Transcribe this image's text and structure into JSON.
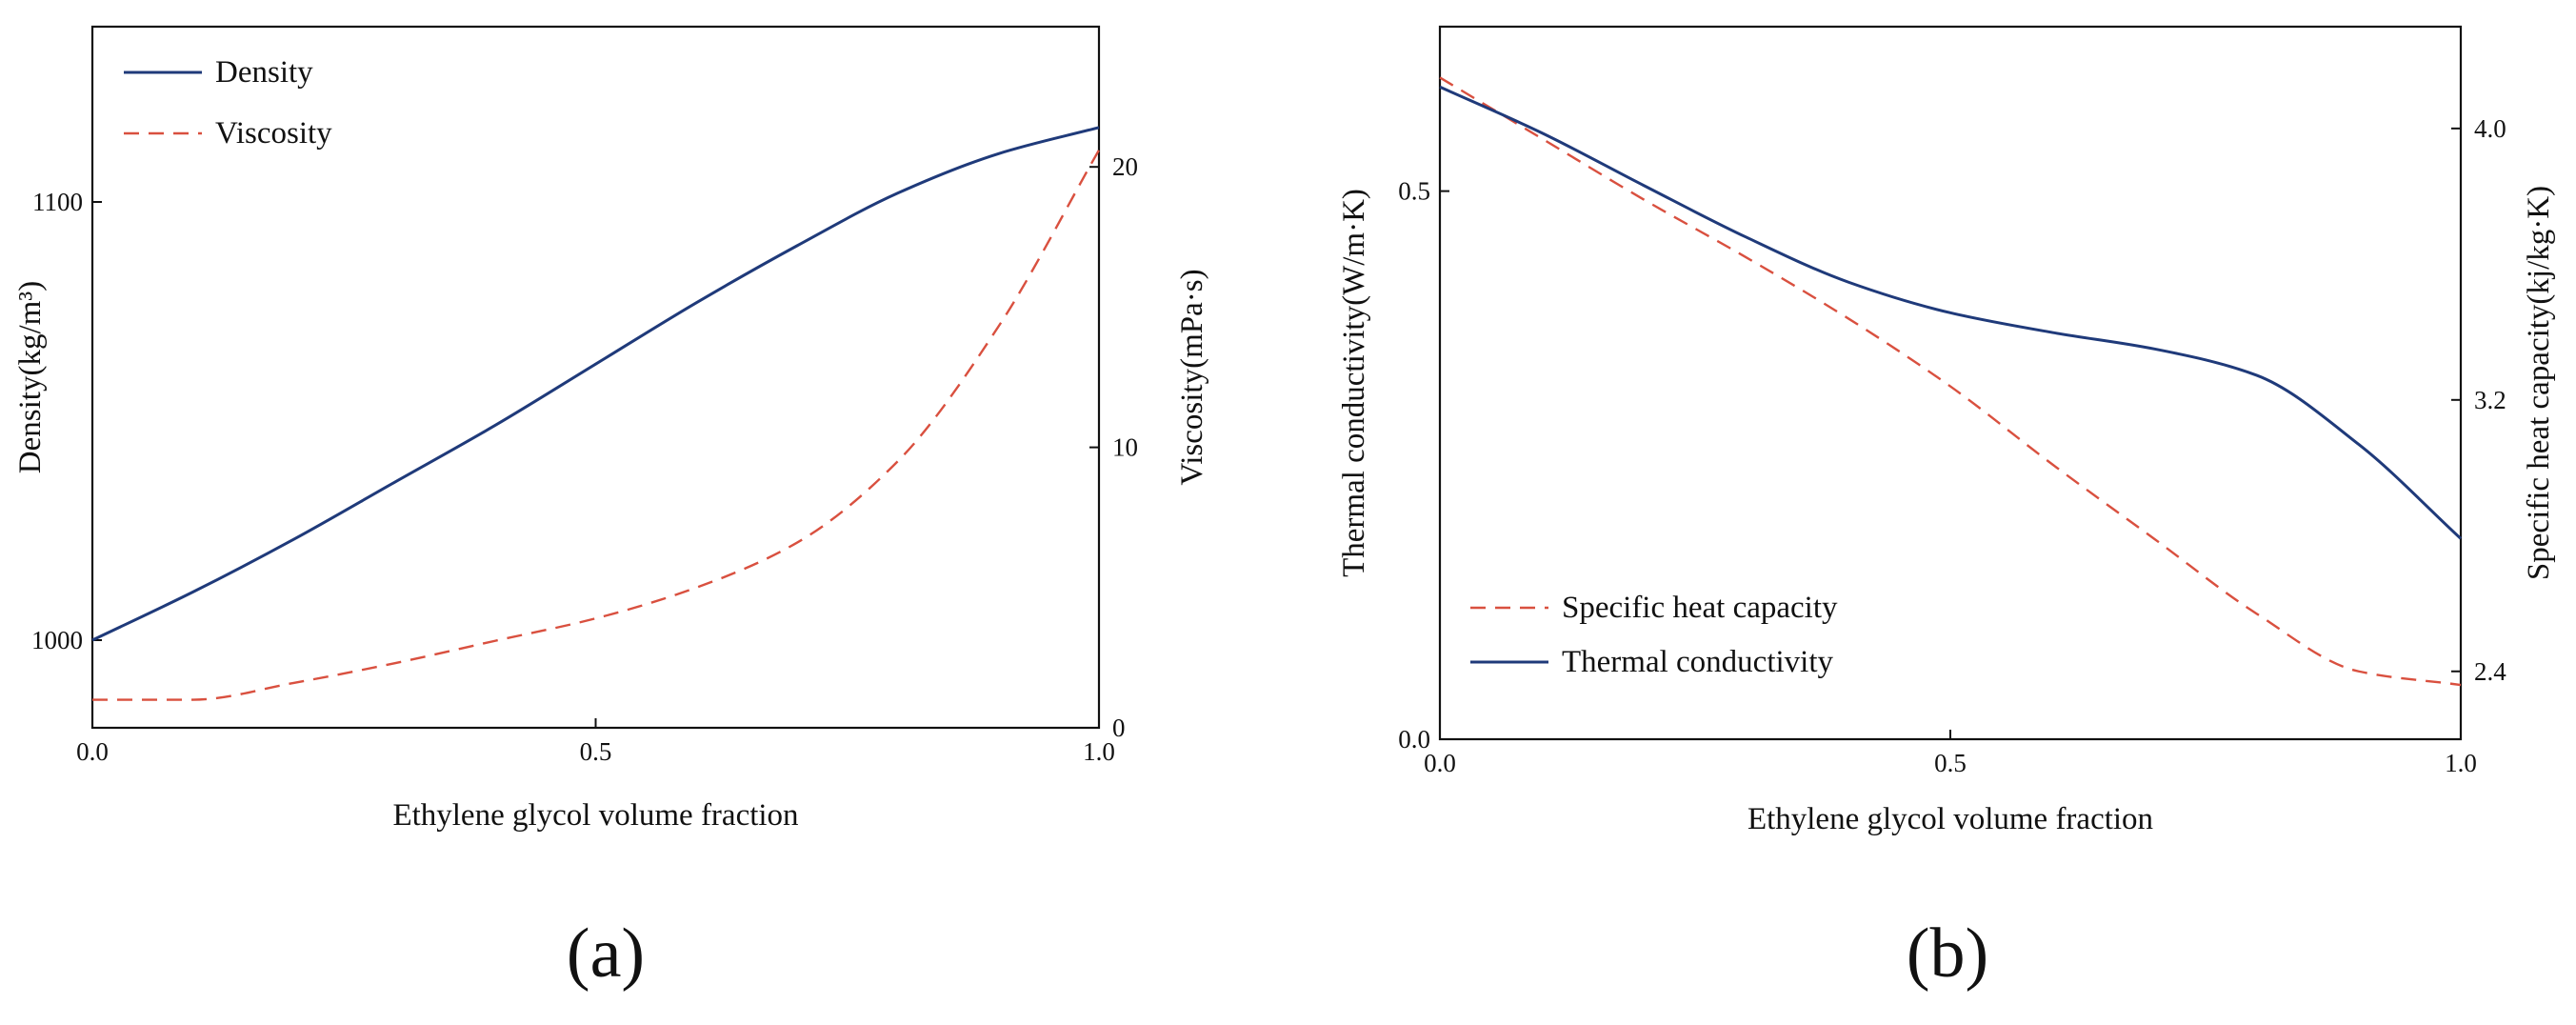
{
  "chart_data": [
    {
      "type": "line",
      "panel_label": "(a)",
      "xlabel": "Ethylene glycol volume fraction",
      "ylabel_left": "Density(kg/m³)",
      "ylabel_right": "Viscosity(mPa·s)",
      "xlim": [
        0,
        1
      ],
      "ylim_left": [
        980,
        1140
      ],
      "ylim_right": [
        0,
        25
      ],
      "xticks": [
        "0.0",
        "0.5",
        "1.0"
      ],
      "yticks_left": [
        "1000",
        "1100"
      ],
      "yticks_right": [
        "0",
        "10",
        "20"
      ],
      "grid": false,
      "legend_position": "top-left",
      "x": [
        0.0,
        0.1,
        0.2,
        0.3,
        0.4,
        0.5,
        0.6,
        0.7,
        0.8,
        0.9,
        1.0
      ],
      "series": [
        {
          "name": "Density",
          "axis": "left",
          "style": "solid",
          "color": "#1f3a7a",
          "values": [
            1000,
            1011,
            1023,
            1036,
            1049,
            1063,
            1077,
            1090,
            1102,
            1111,
            1117
          ]
        },
        {
          "name": "Viscosity",
          "axis": "right",
          "style": "dashed",
          "color": "#d9503f",
          "values": [
            1.0,
            1.0,
            1.6,
            2.3,
            3.1,
            3.9,
            5.0,
            6.6,
            9.5,
            14.3,
            20.6
          ]
        }
      ]
    },
    {
      "type": "line",
      "panel_label": "(b)",
      "xlabel": "Ethylene glycol volume fraction",
      "ylabel_left": "Thermal conductivity(W/m·K)",
      "ylabel_right": "Specific heat capacity(kj/kg·K)",
      "xlim": [
        0,
        1
      ],
      "ylim_left": [
        0,
        0.65
      ],
      "ylim_right": [
        2.2,
        4.3
      ],
      "xticks": [
        "0.0",
        "0.5",
        "1.0"
      ],
      "yticks_left": [
        "0.0",
        "0.5"
      ],
      "yticks_right": [
        "2.4",
        "3.2",
        "4.0"
      ],
      "grid": false,
      "legend_position": "bottom-left",
      "x": [
        0.0,
        0.1,
        0.2,
        0.3,
        0.4,
        0.5,
        0.6,
        0.7,
        0.8,
        0.9,
        1.0
      ],
      "series": [
        {
          "name": "Specific heat capacity",
          "axis": "right",
          "style": "dashed",
          "color": "#d9503f",
          "values": [
            4.15,
            3.97,
            3.79,
            3.62,
            3.44,
            3.24,
            3.01,
            2.79,
            2.57,
            2.4,
            2.36
          ]
        },
        {
          "name": "Thermal conductivity",
          "axis": "left",
          "style": "solid",
          "color": "#1f3a7a",
          "values": [
            0.595,
            0.553,
            0.505,
            0.458,
            0.417,
            0.389,
            0.371,
            0.356,
            0.332,
            0.269,
            0.183
          ]
        }
      ]
    }
  ]
}
